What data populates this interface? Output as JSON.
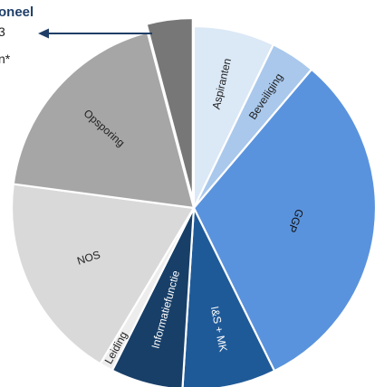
{
  "callout": {
    "title": "oneel",
    "line1": "3",
    "line2": "n*"
  },
  "chart_data": {
    "type": "pie",
    "title": "",
    "slices": [
      {
        "label": "",
        "value": 4.1,
        "color": "#777777",
        "text_color": "#ffffff",
        "exploded": true
      },
      {
        "label": "Aspiranten",
        "value": 7.2,
        "color": "#dbe8f6",
        "text_color": "#222222"
      },
      {
        "label": "Beveiliging",
        "value": 4.0,
        "color": "#a9c8ec",
        "text_color": "#222222"
      },
      {
        "label": "GGP",
        "value": 31.5,
        "color": "#5a93dd",
        "text_color": "#111111"
      },
      {
        "label": "I&S + MK",
        "value": 8.3,
        "color": "#1f5a98",
        "text_color": "#ffffff"
      },
      {
        "label": "Informatiefunctie",
        "value": 6.4,
        "color": "#183f68",
        "text_color": "#ffffff"
      },
      {
        "label": "Leiding",
        "value": 1.2,
        "color": "#ededed",
        "text_color": "#222222"
      },
      {
        "label": "NOS",
        "value": 18.5,
        "color": "#d9d9d9",
        "text_color": "#222222"
      },
      {
        "label": "Opsporing",
        "value": 18.8,
        "color": "#a6a6a6",
        "text_color": "#222222"
      }
    ]
  }
}
